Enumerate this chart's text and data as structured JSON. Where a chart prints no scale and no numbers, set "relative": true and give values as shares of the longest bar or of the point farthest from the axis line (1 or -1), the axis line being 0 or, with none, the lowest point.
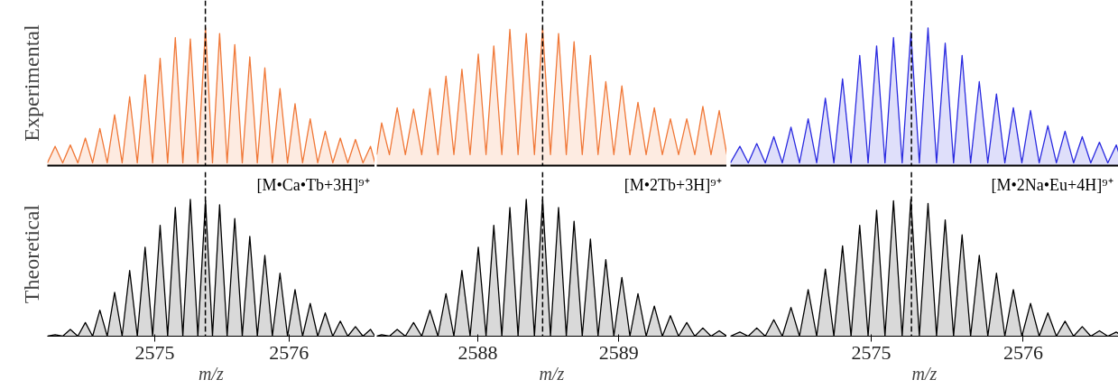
{
  "chart_data": [
    {
      "type": "area",
      "relative": true,
      "ylabel": "Experimental",
      "tick_labels": false,
      "xlim": [
        2574.2,
        2576.64
      ],
      "x": [
        2574.2,
        2574.258,
        2574.314,
        2574.371,
        2574.427,
        2574.483,
        2574.537,
        2574.591,
        2574.646,
        2574.701,
        2574.757,
        2574.813,
        2574.87,
        2574.928,
        2574.984,
        2575.04,
        2575.096,
        2575.153,
        2575.209,
        2575.265,
        2575.321,
        2575.378,
        2575.43,
        2575.483,
        2575.539,
        2575.596,
        2575.652,
        2575.708,
        2575.764,
        2575.82,
        2575.876,
        2575.933,
        2575.989,
        2576.045,
        2576.101,
        2576.158,
        2576.214,
        2576.27,
        2576.326,
        2576.382,
        2576.438,
        2576.495,
        2576.551,
        2576.607,
        2576.64
      ],
      "series": [
        {
          "color": "#f07838",
          "values": [
            0.02,
            0.14,
            0.02,
            0.15,
            0.02,
            0.2,
            0.02,
            0.27,
            0.02,
            0.37,
            0.02,
            0.5,
            0.02,
            0.66,
            0.02,
            0.78,
            0.02,
            0.93,
            0.02,
            0.92,
            0.02,
            1.0,
            0.02,
            0.96,
            0.02,
            0.88,
            0.02,
            0.79,
            0.02,
            0.71,
            0.02,
            0.56,
            0.02,
            0.45,
            0.02,
            0.34,
            0.02,
            0.25,
            0.02,
            0.2,
            0.02,
            0.19,
            0.02,
            0.14,
            0.02
          ]
        }
      ],
      "ref_lines": [
        {
          "axis": "x",
          "value": 2575.377,
          "color": "#000000",
          "line_style": "dashed"
        }
      ]
    },
    {
      "type": "area",
      "relative": true,
      "tick_labels": false,
      "xlim": [
        2587.284,
        2589.766
      ],
      "x": [
        2587.284,
        2587.319,
        2587.374,
        2587.429,
        2587.487,
        2587.545,
        2587.603,
        2587.661,
        2587.718,
        2587.775,
        2587.831,
        2587.888,
        2587.946,
        2588.004,
        2588.059,
        2588.114,
        2588.171,
        2588.228,
        2588.286,
        2588.344,
        2588.402,
        2588.46,
        2588.516,
        2588.573,
        2588.628,
        2588.683,
        2588.741,
        2588.799,
        2588.853,
        2588.908,
        2588.965,
        2589.022,
        2589.079,
        2589.136,
        2589.194,
        2589.252,
        2589.309,
        2589.366,
        2589.424,
        2589.482,
        2589.539,
        2589.596,
        2589.654,
        2589.712,
        2589.766
      ],
      "series": [
        {
          "color": "#f07838",
          "values": [
            0.08,
            0.31,
            0.08,
            0.42,
            0.08,
            0.41,
            0.08,
            0.56,
            0.08,
            0.65,
            0.08,
            0.7,
            0.08,
            0.81,
            0.08,
            0.87,
            0.08,
            0.99,
            0.08,
            0.96,
            0.08,
            1.0,
            0.08,
            0.96,
            0.08,
            0.9,
            0.08,
            0.8,
            0.08,
            0.61,
            0.08,
            0.58,
            0.08,
            0.46,
            0.08,
            0.42,
            0.08,
            0.34,
            0.08,
            0.34,
            0.08,
            0.43,
            0.08,
            0.4,
            0.08
          ]
        }
      ],
      "ref_lines": [
        {
          "axis": "x",
          "value": 2588.46,
          "color": "#000000",
          "line_style": "dashed"
        }
      ]
    },
    {
      "type": "area",
      "relative": true,
      "tick_labels": false,
      "xlim": [
        2574.075,
        2576.626
      ],
      "x": [
        2574.075,
        2574.137,
        2574.192,
        2574.248,
        2574.304,
        2574.36,
        2574.416,
        2574.473,
        2574.529,
        2574.586,
        2574.642,
        2574.699,
        2574.755,
        2574.812,
        2574.868,
        2574.925,
        2574.98,
        2575.036,
        2575.091,
        2575.147,
        2575.204,
        2575.261,
        2575.317,
        2575.374,
        2575.43,
        2575.487,
        2575.542,
        2575.598,
        2575.654,
        2575.711,
        2575.767,
        2575.824,
        2575.879,
        2575.935,
        2575.991,
        2576.048,
        2576.105,
        2576.162,
        2576.218,
        2576.275,
        2576.331,
        2576.388,
        2576.444,
        2576.501,
        2576.556,
        2576.612,
        2576.626
      ],
      "series": [
        {
          "color": "#2a2ae0",
          "values": [
            0.02,
            0.14,
            0.02,
            0.16,
            0.02,
            0.21,
            0.02,
            0.28,
            0.02,
            0.34,
            0.02,
            0.49,
            0.02,
            0.63,
            0.02,
            0.8,
            0.02,
            0.87,
            0.02,
            0.93,
            0.02,
            0.97,
            0.02,
            1.0,
            0.02,
            0.89,
            0.02,
            0.8,
            0.02,
            0.61,
            0.02,
            0.52,
            0.02,
            0.42,
            0.02,
            0.4,
            0.02,
            0.29,
            0.02,
            0.25,
            0.02,
            0.21,
            0.02,
            0.17,
            0.02,
            0.15,
            0.1
          ]
        }
      ],
      "ref_lines": [
        {
          "axis": "x",
          "value": 2575.265,
          "color": "#000000",
          "line_style": "dashed"
        }
      ]
    },
    {
      "type": "area",
      "relative": true,
      "ylabel": "Theoretical",
      "xlabel": "m/z",
      "tick_labels": "x",
      "xlim": [
        2574.2,
        2576.64
      ],
      "xticks": [
        2575,
        2576
      ],
      "annotations": [
        "[M•Ca•Tb+3H]⁹⁺"
      ],
      "x": [
        2574.2,
        2574.258,
        2574.314,
        2574.371,
        2574.427,
        2574.483,
        2574.537,
        2574.591,
        2574.646,
        2574.701,
        2574.757,
        2574.813,
        2574.87,
        2574.928,
        2574.984,
        2575.04,
        2575.096,
        2575.153,
        2575.209,
        2575.265,
        2575.321,
        2575.378,
        2575.43,
        2575.483,
        2575.539,
        2575.596,
        2575.652,
        2575.708,
        2575.764,
        2575.82,
        2575.876,
        2575.933,
        2575.989,
        2576.045,
        2576.101,
        2576.158,
        2576.214,
        2576.27,
        2576.326,
        2576.382,
        2576.438,
        2576.495,
        2576.551,
        2576.607,
        2576.64
      ],
      "series": [
        {
          "color": "#000000",
          "values": [
            0,
            0.01,
            0,
            0.05,
            0,
            0.1,
            0,
            0.19,
            0,
            0.32,
            0,
            0.48,
            0,
            0.65,
            0,
            0.81,
            0,
            0.94,
            0,
            1.0,
            0,
            0.99,
            0,
            0.96,
            0,
            0.86,
            0,
            0.73,
            0,
            0.59,
            0,
            0.46,
            0,
            0.34,
            0,
            0.24,
            0,
            0.17,
            0,
            0.11,
            0,
            0.07,
            0,
            0.05,
            0
          ]
        }
      ],
      "ref_lines": [
        {
          "axis": "x",
          "value": 2575.377,
          "color": "#000000",
          "line_style": "dashed"
        }
      ]
    },
    {
      "type": "area",
      "relative": true,
      "xlabel": "m/z",
      "tick_labels": "x",
      "xlim": [
        2587.284,
        2589.766
      ],
      "xticks": [
        2588,
        2589
      ],
      "annotations": [
        "[M•2Tb+3H]⁹⁺"
      ],
      "x": [
        2587.284,
        2587.319,
        2587.374,
        2587.429,
        2587.487,
        2587.545,
        2587.603,
        2587.661,
        2587.718,
        2587.775,
        2587.831,
        2587.888,
        2587.946,
        2588.004,
        2588.059,
        2588.114,
        2588.171,
        2588.228,
        2588.286,
        2588.344,
        2588.402,
        2588.46,
        2588.516,
        2588.573,
        2588.628,
        2588.683,
        2588.741,
        2588.799,
        2588.853,
        2588.908,
        2588.965,
        2589.022,
        2589.079,
        2589.136,
        2589.194,
        2589.252,
        2589.309,
        2589.366,
        2589.424,
        2589.482,
        2589.539,
        2589.596,
        2589.654,
        2589.712,
        2589.766
      ],
      "series": [
        {
          "color": "#000000",
          "values": [
            0,
            0.01,
            0,
            0.05,
            0,
            0.1,
            0,
            0.19,
            0,
            0.31,
            0,
            0.48,
            0,
            0.65,
            0,
            0.81,
            0,
            0.94,
            0,
            1.0,
            0,
            1.0,
            0,
            0.94,
            0,
            0.84,
            0,
            0.71,
            0,
            0.56,
            0,
            0.43,
            0,
            0.31,
            0,
            0.22,
            0,
            0.15,
            0,
            0.1,
            0,
            0.06,
            0,
            0.04,
            0
          ]
        }
      ],
      "ref_lines": [
        {
          "axis": "x",
          "value": 2588.46,
          "color": "#000000",
          "line_style": "dashed"
        }
      ]
    },
    {
      "type": "area",
      "relative": true,
      "xlabel": "m/z",
      "tick_labels": "x",
      "xlim": [
        2574.075,
        2576.626
      ],
      "xticks": [
        2575,
        2576
      ],
      "annotations": [
        "[M•2Na•Eu+4H]⁹⁺"
      ],
      "x": [
        2574.075,
        2574.137,
        2574.192,
        2574.248,
        2574.304,
        2574.36,
        2574.416,
        2574.473,
        2574.529,
        2574.586,
        2574.642,
        2574.699,
        2574.755,
        2574.812,
        2574.868,
        2574.925,
        2574.98,
        2575.036,
        2575.091,
        2575.147,
        2575.204,
        2575.261,
        2575.317,
        2575.374,
        2575.43,
        2575.487,
        2575.542,
        2575.598,
        2575.654,
        2575.711,
        2575.767,
        2575.824,
        2575.879,
        2575.935,
        2575.991,
        2576.048,
        2576.105,
        2576.162,
        2576.218,
        2576.275,
        2576.331,
        2576.388,
        2576.444,
        2576.501,
        2576.556,
        2576.612,
        2576.626
      ],
      "series": [
        {
          "color": "#000000",
          "values": [
            0,
            0.03,
            0,
            0.06,
            0,
            0.12,
            0,
            0.21,
            0,
            0.34,
            0,
            0.49,
            0,
            0.66,
            0,
            0.81,
            0,
            0.92,
            0,
            0.99,
            0,
            1.0,
            0,
            0.97,
            0,
            0.85,
            0,
            0.74,
            0,
            0.59,
            0,
            0.46,
            0,
            0.34,
            0,
            0.24,
            0,
            0.17,
            0,
            0.11,
            0,
            0.07,
            0,
            0.04,
            0,
            0.03,
            0.02
          ]
        }
      ],
      "ref_lines": [
        {
          "axis": "x",
          "value": 2575.265,
          "color": "#000000",
          "line_style": "dashed"
        }
      ]
    }
  ]
}
